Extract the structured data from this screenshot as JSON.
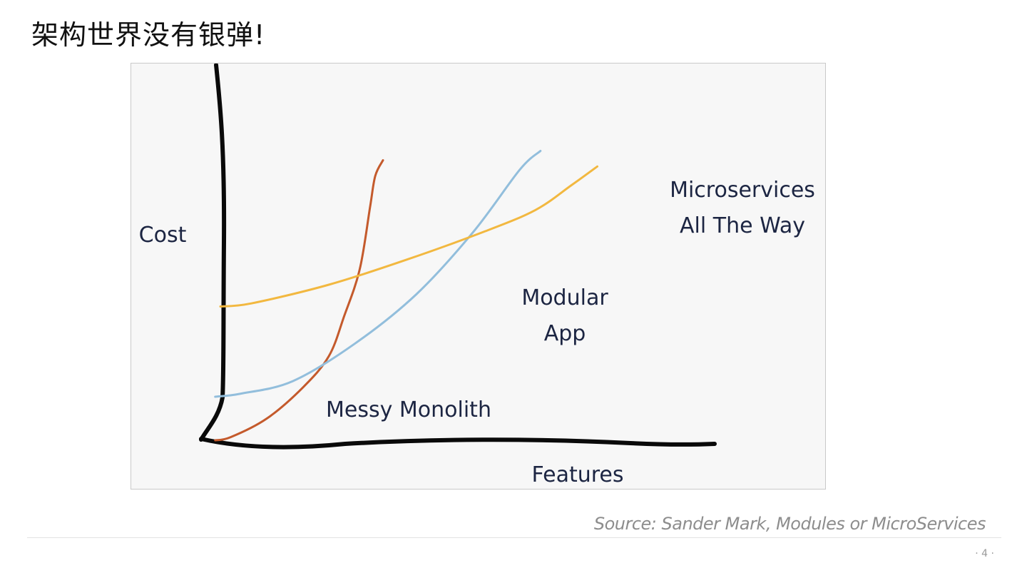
{
  "slide": {
    "title": "架构世界没有银弹!",
    "source": "Source: Sander Mark, Modules or MicroServices",
    "page_number": "· 4 ·"
  },
  "chart_data": {
    "type": "line",
    "xlabel": "Features",
    "ylabel": "Cost",
    "xlim": [
      0,
      100
    ],
    "ylim": [
      0,
      100
    ],
    "grid": false,
    "legend": "none",
    "series": [
      {
        "name": "Messy Monolith",
        "color": "#c45a2c",
        "label_lines": [
          "Messy Monolith"
        ],
        "x": [
          3,
          6,
          13,
          20,
          25,
          28,
          31,
          33,
          34,
          35.5
        ],
        "y": [
          0,
          1,
          7,
          17,
          27,
          40,
          55,
          75,
          85,
          90
        ]
      },
      {
        "name": "Modular App",
        "color": "#92bedc",
        "label_lines": [
          "Modular",
          "App"
        ],
        "x": [
          3,
          8,
          18,
          30,
          42,
          53,
          62,
          66
        ],
        "y": [
          14,
          15,
          19,
          31,
          47,
          67,
          87,
          93
        ]
      },
      {
        "name": "Microservices All The Way",
        "color": "#f2b840",
        "label_lines": [
          "Microservices",
          "All The Way"
        ],
        "x": [
          4,
          10,
          25,
          40,
          55,
          65,
          72,
          77
        ],
        "y": [
          43,
          44,
          50,
          58,
          67,
          74,
          82,
          88
        ]
      }
    ]
  }
}
